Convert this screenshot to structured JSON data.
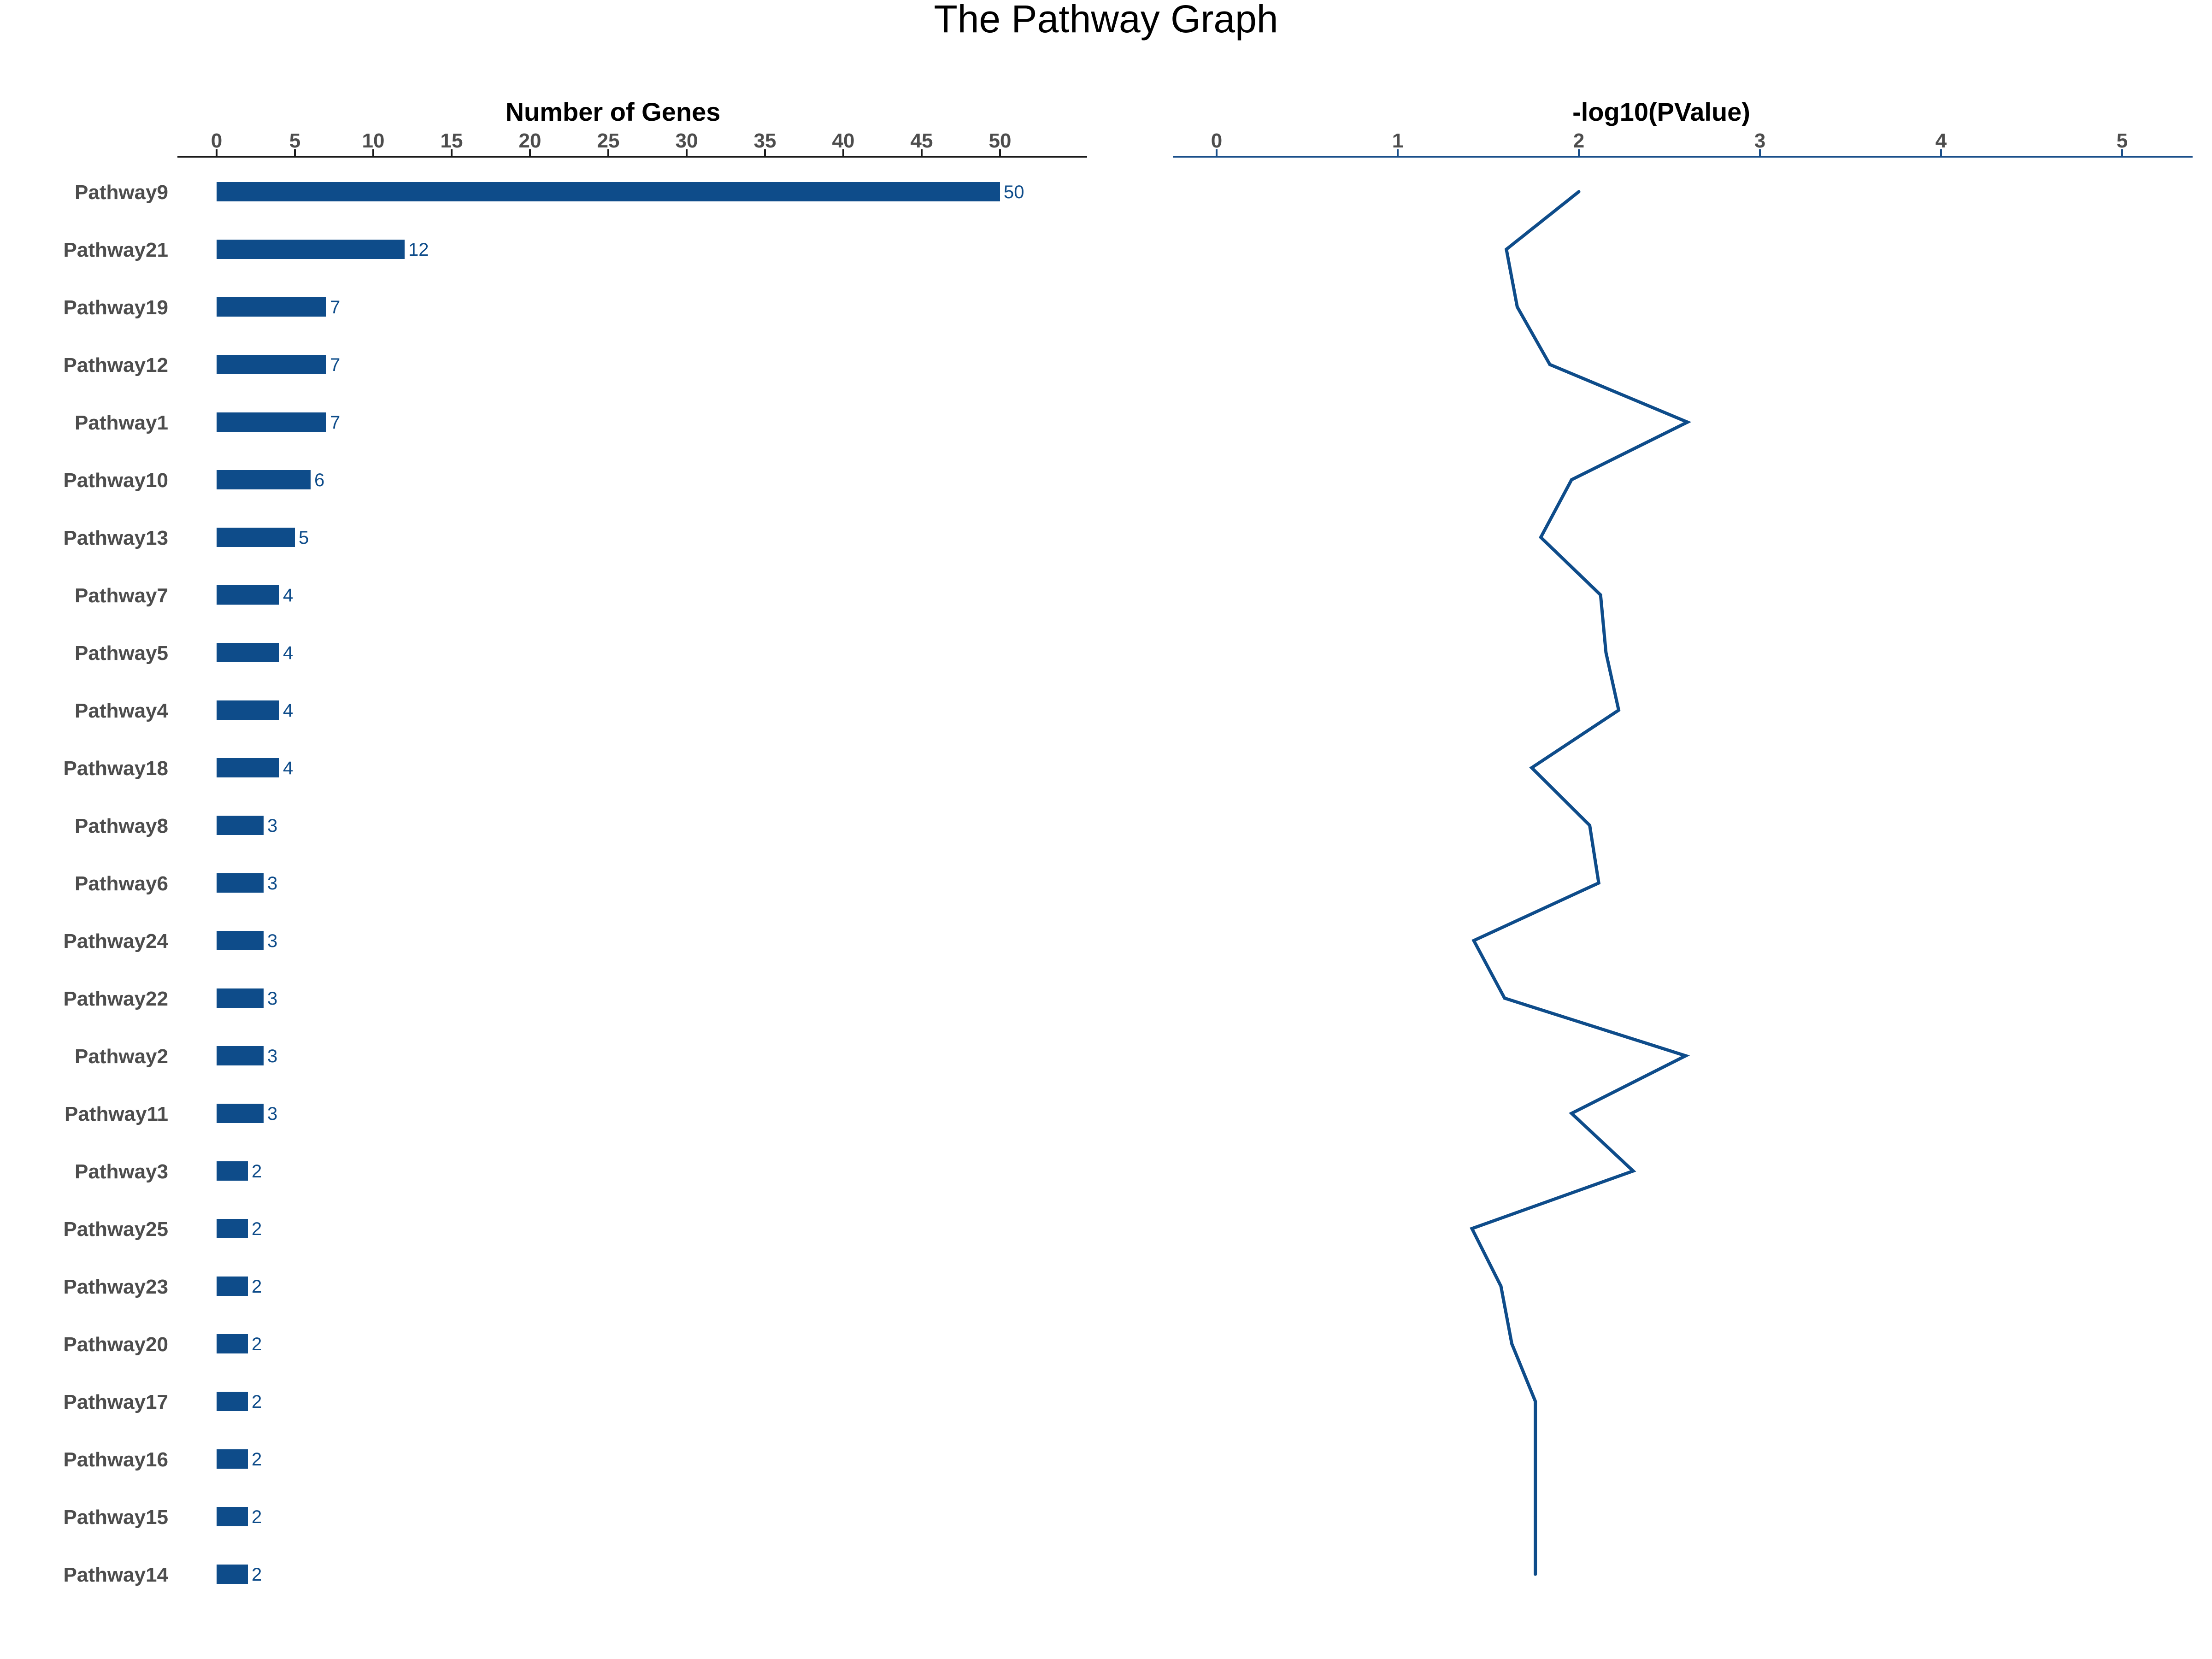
{
  "chart_data": {
    "title": "The Pathway Graph",
    "bar_color": "#0e4c8a",
    "line_color": "#0e4c8a",
    "axis_color_left": "#1a1a1a",
    "axis_color_right": "#1a4f8a",
    "categories": [
      "Pathway9",
      "Pathway21",
      "Pathway19",
      "Pathway12",
      "Pathway1",
      "Pathway10",
      "Pathway13",
      "Pathway7",
      "Pathway5",
      "Pathway4",
      "Pathway18",
      "Pathway8",
      "Pathway6",
      "Pathway24",
      "Pathway22",
      "Pathway2",
      "Pathway11",
      "Pathway3",
      "Pathway25",
      "Pathway23",
      "Pathway20",
      "Pathway17",
      "Pathway16",
      "Pathway15",
      "Pathway14"
    ],
    "panels": [
      {
        "type": "bar",
        "orientation": "horizontal",
        "xlabel": "Number of Genes",
        "xlim": [
          0,
          53
        ],
        "ticks": [
          0,
          5,
          10,
          15,
          20,
          25,
          30,
          35,
          40,
          45,
          50
        ],
        "values": [
          50,
          12,
          7,
          7,
          7,
          6,
          5,
          4,
          4,
          4,
          4,
          3,
          3,
          3,
          3,
          3,
          3,
          2,
          2,
          2,
          2,
          2,
          2,
          2,
          2
        ],
        "data_labels": true,
        "axis_position": "top"
      },
      {
        "type": "line",
        "xlabel": "-log10(PValue)",
        "xlim": [
          0,
          5.3
        ],
        "ticks": [
          0,
          1,
          2,
          3,
          4,
          5
        ],
        "values": [
          2.0,
          1.6,
          1.66,
          1.84,
          2.6,
          1.96,
          1.79,
          2.12,
          2.15,
          2.22,
          1.74,
          2.06,
          2.11,
          1.42,
          1.59,
          2.59,
          1.96,
          2.3,
          1.41,
          1.57,
          1.63,
          1.76,
          1.76,
          1.76,
          1.76
        ],
        "axis_position": "top"
      }
    ]
  }
}
